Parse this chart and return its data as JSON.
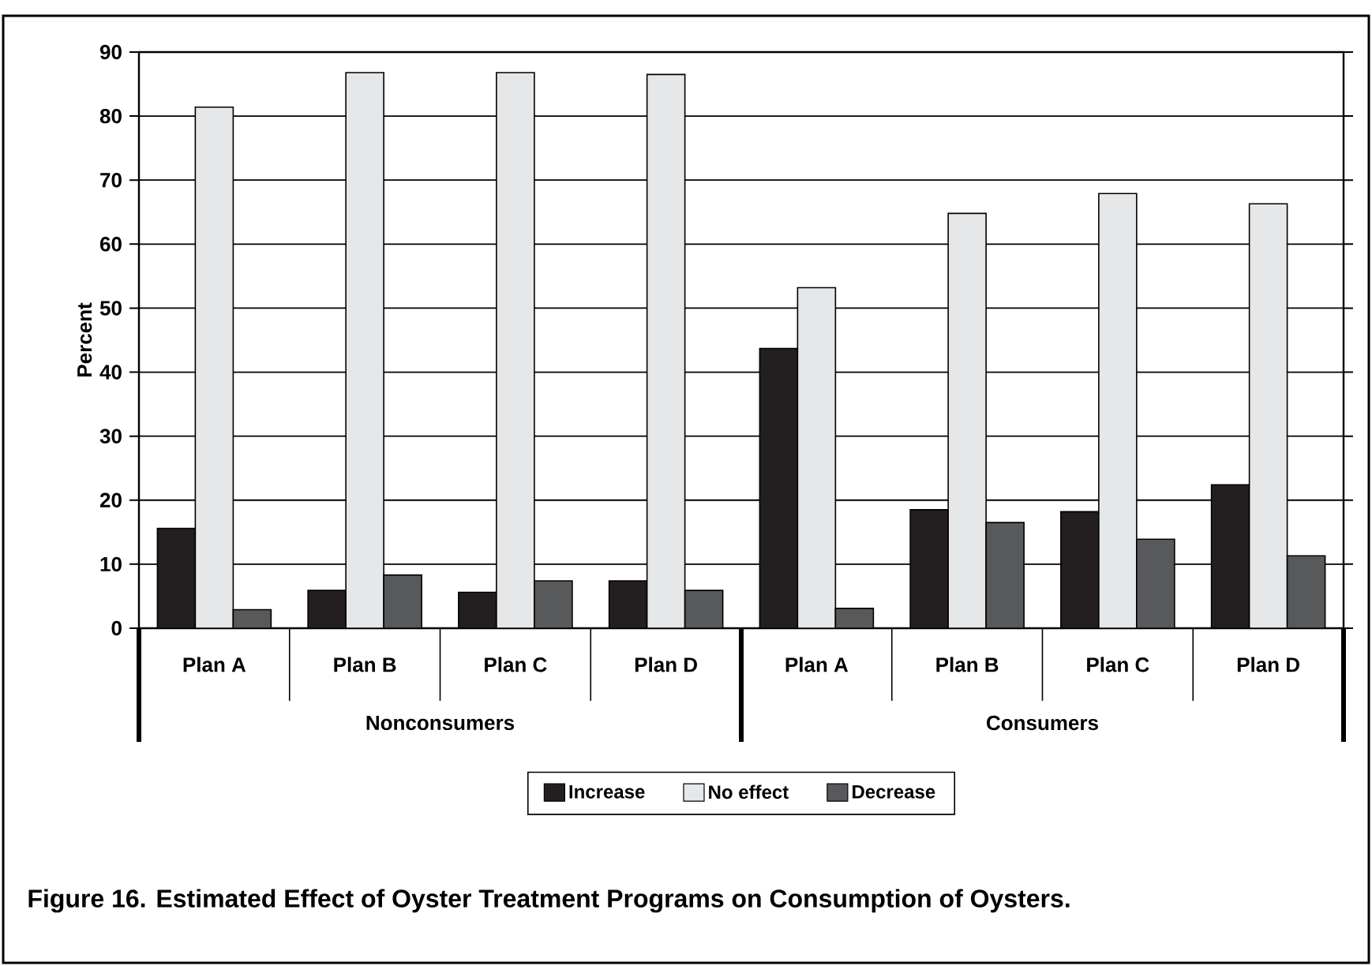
{
  "chart_data": {
    "type": "bar",
    "title": "Figure 16. Estimated Effect of Oyster Treatment Programs on Consumption of Oysters.",
    "ylabel": "Percent",
    "categories": [
      "Plan A",
      "Plan B",
      "Plan C",
      "Plan D",
      "Plan A",
      "Plan B",
      "Plan C",
      "Plan D"
    ],
    "annotations": [
      "Nonconsumers",
      "Consumers"
    ],
    "series": [
      {
        "name": "Increase",
        "color": "#231f20",
        "values": [
          15.6,
          5.9,
          5.6,
          7.4,
          43.7,
          18.5,
          18.2,
          22.4
        ]
      },
      {
        "name": "No effect",
        "color": "#e6e7e8",
        "values": [
          81.4,
          86.8,
          86.8,
          86.5,
          53.2,
          64.8,
          67.9,
          66.3
        ]
      },
      {
        "name": "Decrease",
        "color": "#58595b",
        "values": [
          2.9,
          8.3,
          7.4,
          5.9,
          3.1,
          16.5,
          13.9,
          11.3
        ]
      }
    ],
    "ylim": [
      0,
      90
    ],
    "yticks": [
      0,
      10,
      20,
      30,
      40,
      50,
      60,
      70,
      80,
      90
    ],
    "grid": "y",
    "legend": "bottom"
  }
}
